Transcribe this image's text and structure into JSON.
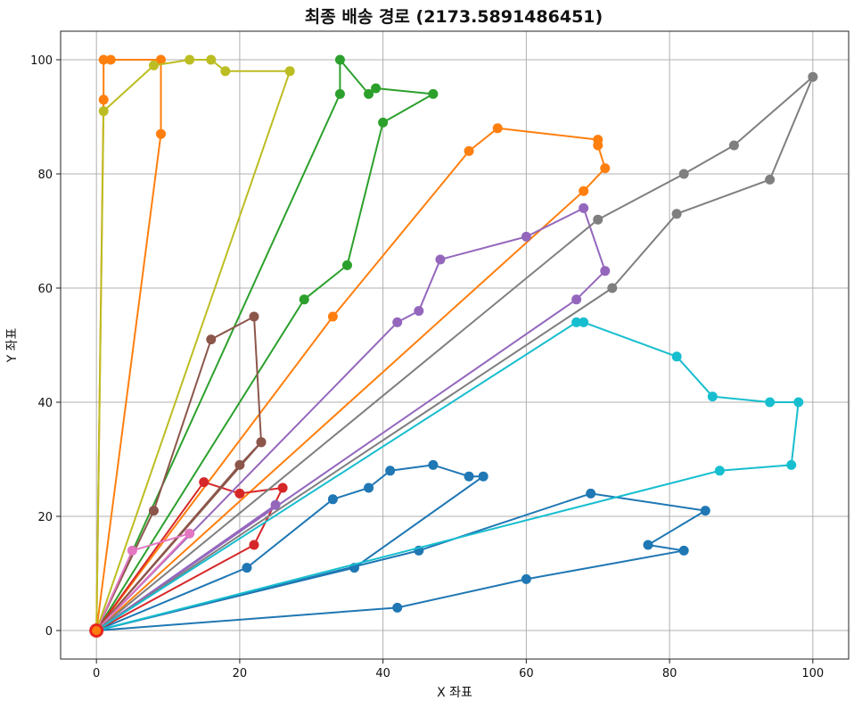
{
  "chart_data": {
    "type": "line",
    "title": "최종 배송 경로 (2173.5891486451)",
    "xlabel": "X 좌표",
    "ylabel": "Y 좌표",
    "xlim": [
      -5,
      105
    ],
    "ylim": [
      -5,
      105
    ],
    "xticks": [
      0,
      20,
      40,
      60,
      80,
      100
    ],
    "yticks": [
      0,
      20,
      40,
      60,
      80,
      100
    ],
    "grid": true,
    "depot": [
      0,
      0
    ],
    "series": [
      {
        "color": "#1f77b4",
        "points": [
          [
            0,
            0
          ],
          [
            21,
            11
          ],
          [
            33,
            23
          ],
          [
            38,
            25
          ],
          [
            41,
            28
          ],
          [
            47,
            29
          ],
          [
            52,
            27
          ],
          [
            54,
            27
          ],
          [
            36,
            11
          ],
          [
            0,
            0
          ]
        ]
      },
      {
        "color": "#1f77b4",
        "points": [
          [
            0,
            0
          ],
          [
            45,
            14
          ],
          [
            69,
            24
          ],
          [
            85,
            21
          ],
          [
            77,
            15
          ],
          [
            82,
            14
          ],
          [
            60,
            9
          ],
          [
            42,
            4
          ],
          [
            0,
            0
          ]
        ]
      },
      {
        "color": "#ff7f0e",
        "points": [
          [
            0,
            0
          ],
          [
            9,
            87
          ],
          [
            9,
            100
          ],
          [
            2,
            100
          ],
          [
            1,
            100
          ],
          [
            1,
            93
          ],
          [
            0,
            0
          ]
        ]
      },
      {
        "color": "#ff7f0e",
        "points": [
          [
            0,
            0
          ],
          [
            33,
            55
          ],
          [
            52,
            84
          ],
          [
            56,
            88
          ],
          [
            70,
            86
          ],
          [
            70,
            85
          ],
          [
            71,
            81
          ],
          [
            68,
            77
          ],
          [
            0,
            0
          ]
        ]
      },
      {
        "color": "#2ca02c",
        "points": [
          [
            0,
            0
          ],
          [
            29,
            58
          ],
          [
            35,
            64
          ],
          [
            40,
            89
          ],
          [
            47,
            94
          ],
          [
            39,
            95
          ],
          [
            38,
            94
          ],
          [
            34,
            100
          ],
          [
            34,
            94
          ],
          [
            0,
            0
          ]
        ]
      },
      {
        "color": "#d62728",
        "points": [
          [
            0,
            0
          ],
          [
            22,
            15
          ],
          [
            26,
            25
          ],
          [
            20,
            24
          ],
          [
            15,
            26
          ],
          [
            0,
            0
          ]
        ]
      },
      {
        "color": "#9467bd",
        "points": [
          [
            0,
            0
          ],
          [
            42,
            54
          ],
          [
            45,
            56
          ],
          [
            48,
            65
          ],
          [
            60,
            69
          ],
          [
            68,
            74
          ],
          [
            71,
            63
          ],
          [
            67,
            58
          ],
          [
            0,
            0
          ]
        ]
      },
      {
        "color": "#9467bd",
        "points": [
          [
            0,
            0
          ],
          [
            25,
            22
          ],
          [
            0,
            0
          ]
        ]
      },
      {
        "color": "#8c564b",
        "points": [
          [
            0,
            0
          ],
          [
            23,
            33
          ],
          [
            20,
            29
          ],
          [
            0,
            0
          ]
        ]
      },
      {
        "color": "#8c564b",
        "points": [
          [
            0,
            0
          ],
          [
            8,
            21
          ],
          [
            16,
            51
          ],
          [
            22,
            55
          ],
          [
            23,
            33
          ],
          [
            0,
            0
          ]
        ]
      },
      {
        "color": "#e377c2",
        "points": [
          [
            0,
            0
          ],
          [
            5,
            14
          ],
          [
            13,
            17
          ],
          [
            0,
            0
          ]
        ]
      },
      {
        "color": "#7f7f7f",
        "points": [
          [
            0,
            0
          ],
          [
            72,
            60
          ],
          [
            81,
            73
          ],
          [
            94,
            79
          ],
          [
            100,
            97
          ],
          [
            89,
            85
          ],
          [
            82,
            80
          ],
          [
            70,
            72
          ],
          [
            0,
            0
          ]
        ]
      },
      {
        "color": "#bcbd22",
        "points": [
          [
            0,
            0
          ],
          [
            1,
            91
          ],
          [
            8,
            99
          ],
          [
            13,
            100
          ],
          [
            16,
            100
          ],
          [
            18,
            98
          ],
          [
            27,
            98
          ],
          [
            0,
            0
          ]
        ]
      },
      {
        "color": "#17becf",
        "points": [
          [
            0,
            0
          ],
          [
            87,
            28
          ],
          [
            97,
            29
          ],
          [
            98,
            40
          ],
          [
            94,
            40
          ],
          [
            86,
            41
          ],
          [
            81,
            48
          ],
          [
            68,
            54
          ],
          [
            67,
            54
          ],
          [
            0,
            0
          ]
        ]
      }
    ]
  }
}
